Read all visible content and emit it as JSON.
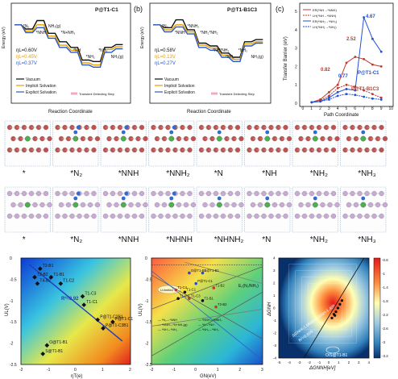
{
  "panel_letters": {
    "b": "(b)",
    "c": "(c)"
  },
  "common": {
    "reaction_xlabel": "Reaction Coordinate",
    "energy_ylabel": "Energy (eV)"
  },
  "energy_legend": [
    "Vacuum",
    "Implicit Solvation",
    "Explicit Solvation",
    "Transient Detecting Step"
  ],
  "colors": {
    "vacuum": "#111111",
    "implicit": "#e6a100",
    "explicit": "#2a59c9",
    "tds": "#f5a8c5",
    "er": "#c0392b",
    "lh": "#1f4fd6"
  },
  "chart_data": [
    {
      "type": "line",
      "id": "pathway_a",
      "title": "P@T1-C1",
      "ylabel": "Energy (eV)",
      "xlabel": "Reaction Coordinate",
      "ylim": [
        -3.5,
        0.5
      ],
      "steps": [
        "*",
        "*N2",
        "*NNH",
        "NH3(g)",
        "*N+NH3",
        "*N",
        "*NH",
        "*NH2",
        "*NH3",
        "NH3(g)"
      ],
      "step_labels": [
        "*N₂",
        "*NNH",
        "NH₃(g)",
        "*N+NH₃",
        "*NH",
        "*NH₂",
        "*NH₃",
        "NH₃(g)"
      ],
      "eta": [
        "ηL=0.60V",
        "ηL=0.45V",
        "ηL=0.37V"
      ],
      "series": [
        {
          "name": "Vacuum",
          "values": [
            0.0,
            -0.3,
            0.3,
            -0.6,
            -1.2,
            -1.6,
            -2.5,
            -2.6,
            -1.6,
            -1.4
          ]
        },
        {
          "name": "Implicit Solvation",
          "values": [
            0.0,
            -0.45,
            0.0,
            -0.8,
            -1.45,
            -1.8,
            -2.7,
            -2.85,
            -1.75,
            -1.55
          ]
        },
        {
          "name": "Explicit Solvation",
          "values": [
            0.0,
            -0.55,
            -0.2,
            -0.95,
            -1.6,
            -1.95,
            -2.85,
            -3.0,
            -1.95,
            -1.7
          ]
        }
      ]
    },
    {
      "type": "line",
      "id": "pathway_b",
      "title": "P@T1-B1C3",
      "ylabel": "Energy (eV)",
      "xlabel": "Reaction Coordinate",
      "ylim": [
        -3.5,
        0.5
      ],
      "step_labels": [
        "*N₂",
        "*NNH",
        "*NNH₂",
        "*NH₂*NH₂",
        "*NH*NH₂",
        "*NH₂",
        "*NH₃",
        "NH₃(g)"
      ],
      "eta": [
        "ηL=0.58V",
        "ηL=0.13V",
        "ηL=0.27V"
      ],
      "series": [
        {
          "name": "Vacuum",
          "values": [
            0.0,
            -0.2,
            0.35,
            -0.35,
            -1.3,
            -1.5,
            -2.0,
            -2.3,
            -1.2,
            -1.05
          ]
        },
        {
          "name": "Implicit Solvation",
          "values": [
            0.0,
            -0.35,
            0.0,
            -0.5,
            -1.45,
            -1.65,
            -2.15,
            -2.45,
            -1.35,
            -1.2
          ]
        },
        {
          "name": "Explicit Solvation",
          "values": [
            0.0,
            -0.5,
            -0.15,
            -0.65,
            -1.6,
            -1.8,
            -2.3,
            -2.6,
            -1.5,
            -1.3
          ]
        }
      ]
    },
    {
      "type": "line",
      "id": "transfer_barrier",
      "xlabel": "Path Coordinate",
      "ylabel": "Transfer Barrier (eV)",
      "xlim": [
        0,
        10
      ],
      "ylim": [
        0,
        5
      ],
      "legend": [
        "ER(*NH→*NNH)",
        "LH(*NH→*NNH)",
        "ER(*NH₂→*NH₃)",
        "LH(*NH₂→*NH₃)"
      ],
      "annotations": [
        "4.67",
        "2.52",
        "0.82",
        "0.77",
        "P@T1-C1",
        "P@T1-B1C3"
      ],
      "series": [
        {
          "name": "ER(*NH→*NNH)",
          "x": [
            1,
            2,
            3,
            4,
            5,
            6,
            7,
            8,
            9
          ],
          "y": [
            0.05,
            0.2,
            0.6,
            1.0,
            2.2,
            2.52,
            2.4,
            2.1,
            2.0
          ]
        },
        {
          "name": "LH(*NH→*NNH)",
          "x": [
            1,
            2,
            3,
            4,
            5,
            6,
            7,
            8,
            9
          ],
          "y": [
            0.05,
            0.15,
            0.4,
            0.82,
            1.0,
            0.9,
            0.7,
            0.5,
            0.3
          ]
        },
        {
          "name": "ER(*NH₂→*NH₃)",
          "x": [
            1,
            2,
            3,
            4,
            5,
            6,
            7,
            8,
            9
          ],
          "y": [
            0.05,
            0.1,
            0.3,
            0.6,
            0.77,
            0.7,
            4.67,
            3.5,
            2.8
          ]
        },
        {
          "name": "LH(*NH₂→*NH₃)",
          "x": [
            1,
            2,
            3,
            4,
            5,
            6,
            7,
            8,
            9
          ],
          "y": [
            0.05,
            0.1,
            0.2,
            0.4,
            0.5,
            0.45,
            0.35,
            0.25,
            0.2
          ]
        }
      ]
    },
    {
      "type": "scatter",
      "id": "scaling_eta",
      "xlabel": "ηT(e)",
      "ylabel": "UL(V)",
      "xlim": [
        -2,
        2
      ],
      "ylim": [
        -2.5,
        0
      ],
      "r2": "R²=0.92",
      "points": [
        {
          "label": "T2-B1",
          "x": -1.3,
          "y": -0.25
        },
        {
          "label": "T2-B2",
          "x": -1.5,
          "y": -0.45
        },
        {
          "label": "T1-B1",
          "x": -0.9,
          "y": -0.45
        },
        {
          "label": "T4-B2",
          "x": -1.4,
          "y": -0.6
        },
        {
          "label": "T1-C2",
          "x": -0.55,
          "y": -0.6
        },
        {
          "label": "T1-C3",
          "x": 0.25,
          "y": -0.9
        },
        {
          "label": "T1-C1",
          "x": 0.3,
          "y": -1.1
        },
        {
          "label": "P@T1-C2B1",
          "x": 0.8,
          "y": -1.45
        },
        {
          "label": "P@T1-C1",
          "x": 1.35,
          "y": -1.5
        },
        {
          "label": "P@T1-C3B1",
          "x": 1.0,
          "y": -1.65
        },
        {
          "label": "O@T1-B1",
          "x": -1.05,
          "y": -2.05
        },
        {
          "label": "S@T1-B1",
          "x": -1.2,
          "y": -2.25
        }
      ],
      "fit": [
        [
          -1.7,
          -0.15
        ],
        [
          1.7,
          -1.95
        ]
      ]
    },
    {
      "type": "heatmap",
      "id": "volcano_GN",
      "xlabel": "GN(eV)",
      "ylabel": "UL(V)",
      "xlim": [
        -2,
        3
      ],
      "ylim": [
        -2.5,
        0
      ],
      "legend": [
        "*N₂→*NNH",
        "*NNH→*NNH₂",
        "*NNH→*N+NH₃(g)",
        "*N→*NH",
        "*NH→*NH₂",
        "*NH₂→*NH₃"
      ],
      "annotations": [
        "E₀(N₂/NH₃)",
        "U-limited",
        "O@T1-B1",
        "S@T1-B1"
      ],
      "points": [
        {
          "label": "O@T1-B1",
          "x": -0.3,
          "y": -0.35
        },
        {
          "label": "S@T1-B1",
          "x": 0.3,
          "y": -0.35
        },
        {
          "label": "P@T1-C1",
          "x": 0.0,
          "y": -0.6
        },
        {
          "label": "T1-C4",
          "x": -0.9,
          "y": -0.75
        },
        {
          "label": "T1-C1",
          "x": -0.5,
          "y": -0.8
        },
        {
          "label": "T1-B2",
          "x": 0.8,
          "y": -0.7
        },
        {
          "label": "T1-C2",
          "x": -0.8,
          "y": -0.95
        },
        {
          "label": "T1-C3",
          "x": -0.3,
          "y": -0.95
        },
        {
          "label": "T2-B1",
          "x": 0.3,
          "y": -1.0
        },
        {
          "label": "T2-B2",
          "x": 0.9,
          "y": -1.15
        }
      ]
    },
    {
      "type": "heatmap",
      "id": "contour_2d",
      "xlabel": "ΔGNNH[eV]",
      "ylabel": "ΔGNH",
      "xlim": [
        -5,
        4
      ],
      "ylim": [
        -4,
        4
      ],
      "colorbar": [
        -0.6,
        -1.0,
        -1.4,
        -1.8,
        -2.2,
        -2.6,
        -3.0,
        -3.2
      ],
      "fit_label": "ΔGNH=1.6698ΔGNNH-1.405",
      "r2": "R²=0.859",
      "annotation": "O/S@T1-B1",
      "points": [
        {
          "x": 0.3,
          "y": -0.8
        },
        {
          "x": 0.5,
          "y": -0.5
        },
        {
          "x": 0.7,
          "y": -0.3
        },
        {
          "x": 0.9,
          "y": 0.0
        },
        {
          "x": 1.1,
          "y": 0.3
        },
        {
          "x": 0.6,
          "y": -0.6
        },
        {
          "x": 1.3,
          "y": 0.6
        }
      ]
    }
  ],
  "structures": {
    "row1_labels": [
      "*",
      "*N₂",
      "*NNH",
      "*NNH₂",
      "*N",
      "*NH",
      "*NH₂",
      "*NH₃"
    ],
    "row2_labels": [
      "*",
      "*N₂",
      "*NNH",
      "*NHNH",
      "*NHNH₂",
      "*N",
      "*NH₂",
      "*NH₃"
    ]
  }
}
